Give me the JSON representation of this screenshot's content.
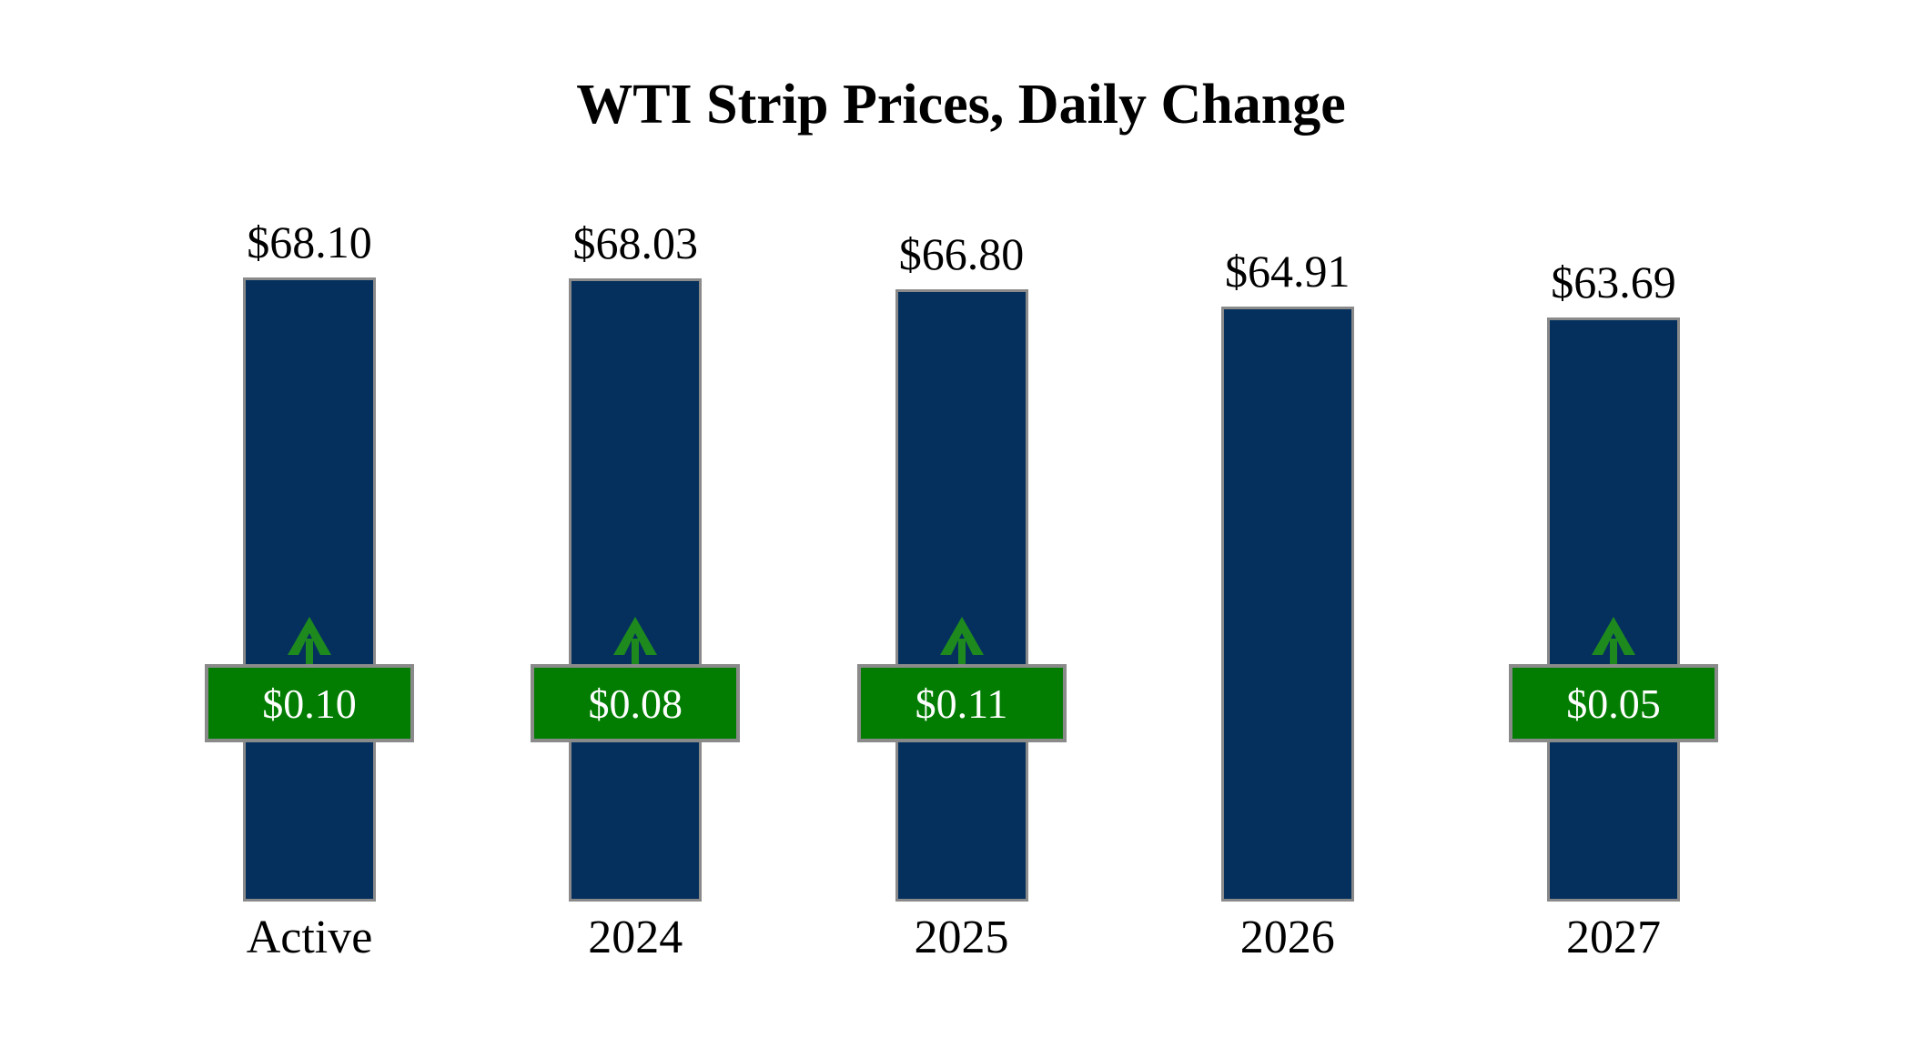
{
  "chart_data": {
    "type": "bar",
    "title": "WTI Strip Prices, Daily Change",
    "categories": [
      "Active",
      "2024",
      "2025",
      "2026",
      "2027"
    ],
    "values": [
      68.1,
      68.03,
      66.8,
      64.91,
      63.69
    ],
    "value_labels": [
      "$68.10",
      "$68.03",
      "$66.80",
      "$64.91",
      "$63.69"
    ],
    "daily_changes": [
      0.1,
      0.08,
      0.11,
      null,
      0.05
    ],
    "change_labels": [
      "$0.10",
      "$0.08",
      "$0.11",
      null,
      "$0.05"
    ],
    "change_direction": "up",
    "xlabel": "",
    "ylabel": "",
    "ylim": [
      0,
      68.1
    ],
    "grid": false,
    "legend": false,
    "colors": {
      "background": "#FFFFFF",
      "bar_fill": "#05305E",
      "bar_border": "#8A8A8A",
      "badge_fill": "#027D02",
      "badge_border": "#8A8A8A",
      "badge_text": "#FFFFFF",
      "arrow_green": "#1E8A1E",
      "label_text": "#000000"
    }
  }
}
